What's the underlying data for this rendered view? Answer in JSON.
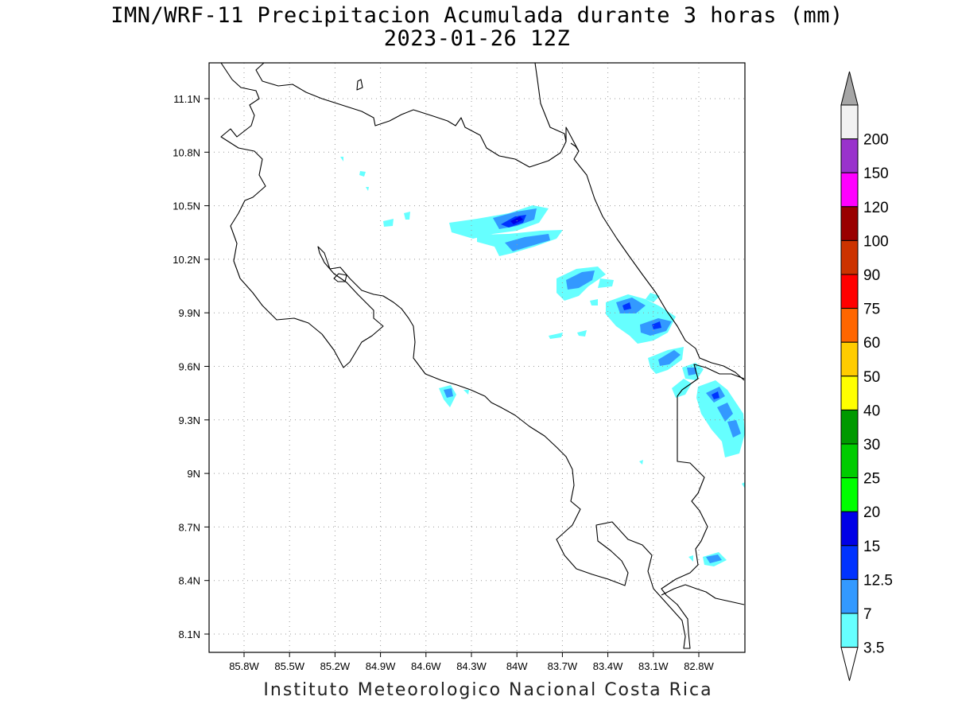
{
  "title": {
    "line1": "IMN/WRF-11 Precipitacion Acumulada durante 3 horas (mm)",
    "line2": "2023-01-26 12Z"
  },
  "credit": "Instituto Meteorologico Nacional Costa Rica",
  "map": {
    "lon_ticks": [
      "85.8W",
      "85.5W",
      "85.2W",
      "84.9W",
      "84.6W",
      "84.3W",
      "84W",
      "83.7W",
      "83.4W",
      "83.1W",
      "82.8W"
    ],
    "lat_ticks": [
      "11.1N",
      "10.8N",
      "10.5N",
      "10.2N",
      "9.9N",
      "9.6N",
      "9.3N",
      "9N",
      "8.7N",
      "8.4N",
      "8.1N"
    ],
    "grid": true
  },
  "colorbar": {
    "levels": [
      "3.5",
      "7",
      "12.5",
      "15",
      "20",
      "25",
      "30",
      "40",
      "50",
      "60",
      "75",
      "90",
      "100",
      "120",
      "150",
      "200"
    ],
    "colors": [
      "#66ffff",
      "#3399ff",
      "#0033ff",
      "#0000e6",
      "#00ff00",
      "#00cc00",
      "#009900",
      "#ffff00",
      "#ffcc00",
      "#ff6600",
      "#ff0000",
      "#cc3300",
      "#990000",
      "#ff00ff",
      "#9933cc",
      "#f2f2f2"
    ],
    "upper_arrow_color": "#a6a6a6",
    "lower_arrow_color": "#ffffff"
  },
  "precip_bands": [
    {
      "level": "3.5",
      "color": "#66ffff"
    },
    {
      "level": "7",
      "color": "#3399ff"
    },
    {
      "level": "12.5",
      "color": "#0033ff"
    }
  ]
}
